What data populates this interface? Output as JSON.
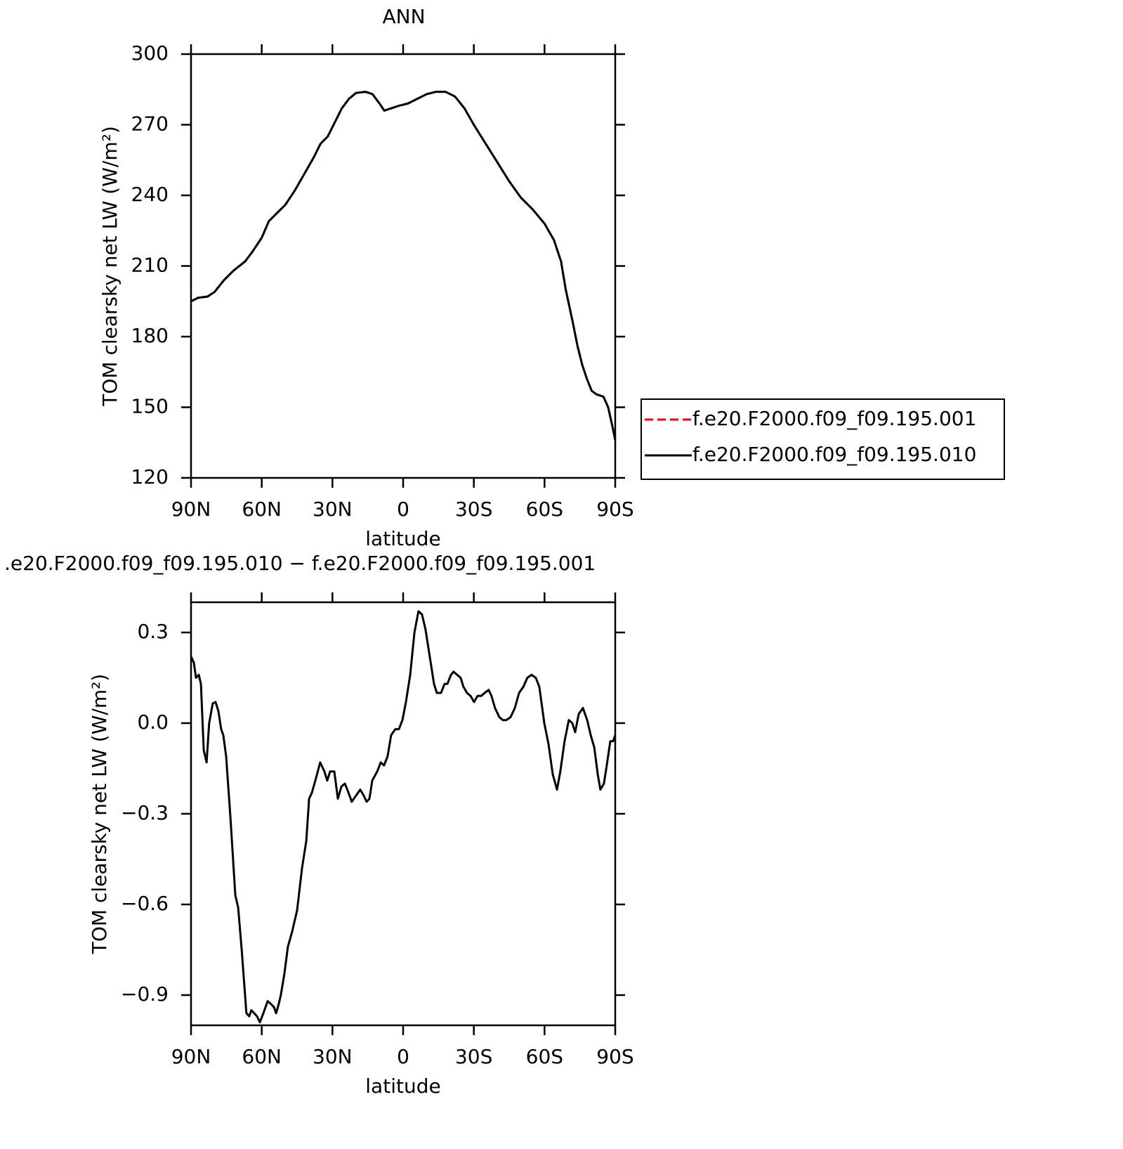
{
  "chart_data": [
    {
      "type": "line",
      "title": "ANN",
      "xlabel": "latitude",
      "ylabel": "TOM clearsky net LW (W/m²)",
      "x": [
        90,
        87,
        83,
        80,
        76,
        72,
        67,
        64,
        60,
        57,
        53,
        50,
        46,
        42,
        38,
        35,
        32,
        29,
        26,
        23,
        20,
        16,
        13,
        10,
        8,
        5,
        2,
        -2,
        -6,
        -10,
        -14,
        -18,
        -22,
        -26,
        -30,
        -35,
        -40,
        -45,
        -50,
        -55,
        -60,
        -64,
        -67,
        -69,
        -72,
        -74,
        -76,
        -78,
        -80,
        -82,
        -85,
        -87,
        -89,
        -90
      ],
      "series": [
        {
          "name": "f.e20.F2000.f09_f09.195.001",
          "color": "#ff0000",
          "dash": true,
          "values": [
            195,
            196.5,
            197,
            199,
            204,
            208,
            212,
            216,
            222,
            229,
            233,
            236,
            242,
            249,
            256,
            262,
            265,
            271,
            277,
            281,
            283.5,
            284,
            283,
            279,
            276,
            277,
            278,
            279,
            281,
            283,
            284,
            284,
            282,
            277,
            270,
            262,
            254,
            246,
            239,
            234,
            228,
            221,
            212,
            200,
            186,
            176,
            168,
            162,
            157,
            155.5,
            154.5,
            150,
            141,
            136
          ]
        },
        {
          "name": "f.e20.F2000.f09_f09.195.010",
          "color": "#000000",
          "dash": false,
          "values": [
            195,
            196.5,
            197,
            199,
            204,
            208,
            212,
            216,
            222,
            229,
            233,
            236,
            242,
            249,
            256,
            262,
            265,
            271,
            277,
            281,
            283.5,
            284,
            283,
            279,
            276,
            277,
            278,
            279,
            281,
            283,
            284,
            284,
            282,
            277,
            270,
            262,
            254,
            246,
            239,
            234,
            228,
            221,
            212,
            200,
            186,
            176,
            168,
            162,
            157,
            155.5,
            154.5,
            150,
            141,
            136
          ]
        }
      ],
      "xlim": [
        90,
        -90
      ],
      "xticks": [
        {
          "value": 90,
          "label": "90N"
        },
        {
          "value": 60,
          "label": "60N"
        },
        {
          "value": 30,
          "label": "30N"
        },
        0,
        {
          "value": -30,
          "label": "30S"
        },
        {
          "value": -60,
          "label": "60S"
        },
        {
          "value": -90,
          "label": "90S"
        }
      ],
      "ylim": [
        120,
        300
      ],
      "yticks": [
        120,
        150,
        180,
        210,
        240,
        270,
        300
      ],
      "legend": "right"
    },
    {
      "type": "line",
      "title": ".e20.F2000.f09_f09.195.010 − f.e20.F2000.f09_f09.195.001",
      "xlabel": "latitude",
      "ylabel": "TOM clearsky net LW (W/m²)",
      "x": [
        90,
        88.8,
        87.9,
        86.7,
        85.8,
        84.6,
        83.4,
        82.3,
        80.8,
        79.6,
        78.4,
        77.2,
        76.3,
        75.1,
        73.3,
        71.2,
        70.0,
        68.5,
        66.5,
        65.3,
        64.4,
        63.2,
        62.0,
        60.8,
        59.3,
        57.5,
        56.0,
        54.8,
        53.9,
        52.8,
        51.9,
        50.4,
        48.9,
        47.1,
        45.0,
        42.9,
        41.1,
        39.9,
        38.7,
        36.9,
        35.2,
        33.4,
        32.2,
        31.0,
        29.2,
        27.7,
        26.2,
        24.7,
        23.2,
        21.8,
        20.0,
        18.2,
        16.7,
        15.5,
        14.3,
        13.1,
        11.0,
        9.5,
        8.1,
        6.6,
        5.1,
        3.3,
        1.8,
        0.3,
        -1.2,
        -3.0,
        -4.8,
        -6.5,
        -8.0,
        -9.5,
        -11.3,
        -13.1,
        -14.3,
        -16.1,
        -17.6,
        -18.8,
        -20.3,
        -21.4,
        -22.9,
        -24.4,
        -25.6,
        -27.1,
        -28.6,
        -30.1,
        -31.6,
        -33.1,
        -34.6,
        -36.3,
        -37.5,
        -39.0,
        -40.8,
        -42.3,
        -43.8,
        -45.6,
        -47.4,
        -49.2,
        -51.0,
        -52.7,
        -54.5,
        -56.3,
        -57.8,
        -59.9,
        -61.7,
        -63.5,
        -65.3,
        -66.7,
        -68.5,
        -70.3,
        -71.8,
        -73.0,
        -74.5,
        -76.3,
        -78.1,
        -79.6,
        -81.1,
        -82.6,
        -83.7,
        -85.2,
        -86.4,
        -87.9,
        -89.1,
        -90
      ],
      "color": "#000000",
      "values": [
        0.22,
        0.2,
        0.15,
        0.16,
        0.13,
        -0.09,
        -0.13,
        0.0,
        0.065,
        0.07,
        0.04,
        -0.02,
        -0.04,
        -0.11,
        -0.31,
        -0.57,
        -0.61,
        -0.75,
        -0.96,
        -0.97,
        -0.95,
        -0.96,
        -0.97,
        -0.99,
        -0.96,
        -0.92,
        -0.93,
        -0.94,
        -0.96,
        -0.93,
        -0.9,
        -0.83,
        -0.74,
        -0.69,
        -0.62,
        -0.48,
        -0.39,
        -0.25,
        -0.23,
        -0.18,
        -0.13,
        -0.16,
        -0.19,
        -0.16,
        -0.16,
        -0.25,
        -0.21,
        -0.2,
        -0.23,
        -0.26,
        -0.24,
        -0.22,
        -0.24,
        -0.26,
        -0.25,
        -0.19,
        -0.16,
        -0.13,
        -0.14,
        -0.11,
        -0.04,
        -0.02,
        -0.02,
        0.01,
        0.07,
        0.16,
        0.3,
        0.37,
        0.36,
        0.31,
        0.22,
        0.13,
        0.1,
        0.1,
        0.13,
        0.13,
        0.16,
        0.17,
        0.16,
        0.15,
        0.12,
        0.1,
        0.09,
        0.07,
        0.09,
        0.09,
        0.1,
        0.11,
        0.09,
        0.05,
        0.02,
        0.01,
        0.01,
        0.02,
        0.05,
        0.1,
        0.12,
        0.15,
        0.16,
        0.15,
        0.12,
        0.0,
        -0.07,
        -0.17,
        -0.22,
        -0.16,
        -0.06,
        0.01,
        0.0,
        -0.03,
        0.03,
        0.05,
        0.01,
        -0.04,
        -0.08,
        -0.17,
        -0.22,
        -0.2,
        -0.14,
        -0.06,
        -0.06,
        -0.04
      ],
      "xlim": [
        90,
        -90
      ],
      "xticks": [
        {
          "value": 90,
          "label": "90N"
        },
        {
          "value": 60,
          "label": "60N"
        },
        {
          "value": 30,
          "label": "30N"
        },
        0,
        {
          "value": -30,
          "label": "30S"
        },
        {
          "value": -60,
          "label": "60S"
        },
        {
          "value": -90,
          "label": "90S"
        }
      ],
      "ylim": [
        -1.0,
        0.4
      ],
      "yticks": [
        {
          "value": -0.9,
          "label": "−0.9"
        },
        {
          "value": -0.6,
          "label": "−0.6"
        },
        {
          "value": -0.3,
          "label": "−0.3"
        },
        {
          "value": 0,
          "label": "0.0"
        },
        0.3
      ]
    }
  ]
}
